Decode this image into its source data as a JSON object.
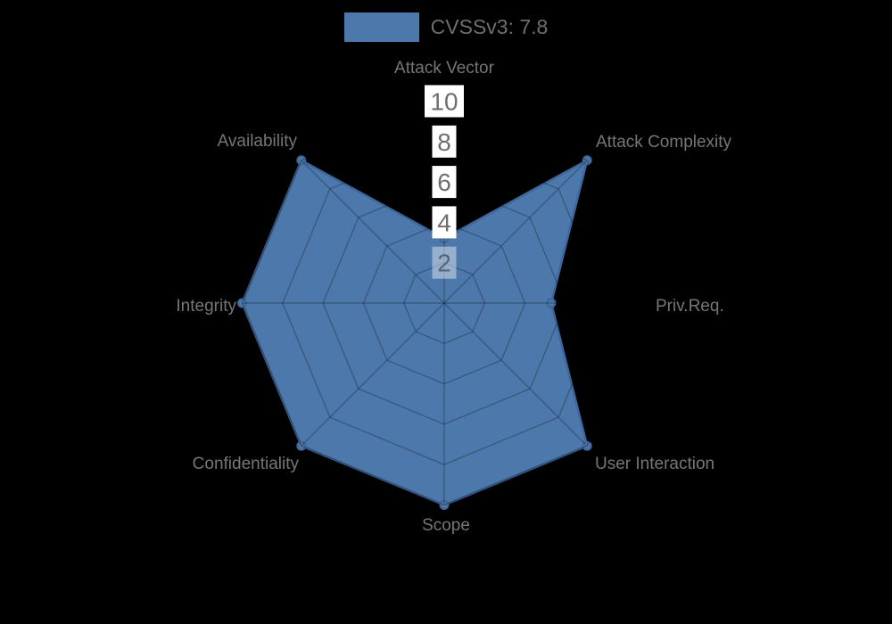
{
  "chart": {
    "legend": {
      "label": "CVSSv3: 7.8"
    },
    "background_color": "#000000",
    "series_color": "#4c78ab",
    "series_stroke_color": "#3e6698",
    "grid_line_color": "rgba(0,0,0,0.25)",
    "axis_label_color": "#767676",
    "tick_text_color": "#6f6f6f",
    "tick_muted_text_color": "#55657e",
    "tick_backdrop_color": "#ffffff",
    "tick_muted_backdrop_color": "rgba(255,255,255,0.42)",
    "legend_text_color": "#6e6e6e"
  },
  "chart_data": {
    "type": "radar",
    "title": "",
    "categories": [
      "Attack Vector",
      "Attack Complexity",
      "Priv.Req.",
      "User Interaction",
      "Scope",
      "Confidentiality",
      "Integrity",
      "Availability"
    ],
    "series": [
      {
        "name": "CVSSv3: 7.8",
        "values": [
          3.2,
          10,
          5.3,
          10,
          10,
          10,
          10,
          10
        ]
      }
    ],
    "radial_axis": {
      "ticks": [
        2,
        4,
        6,
        8,
        10
      ],
      "range": [
        0,
        10
      ],
      "tick_axis": "top"
    },
    "grid": {
      "shape": "polygon",
      "rings": 5,
      "spokes": 8,
      "visible_only_over_fill": true
    },
    "legend_position": "top-center"
  }
}
